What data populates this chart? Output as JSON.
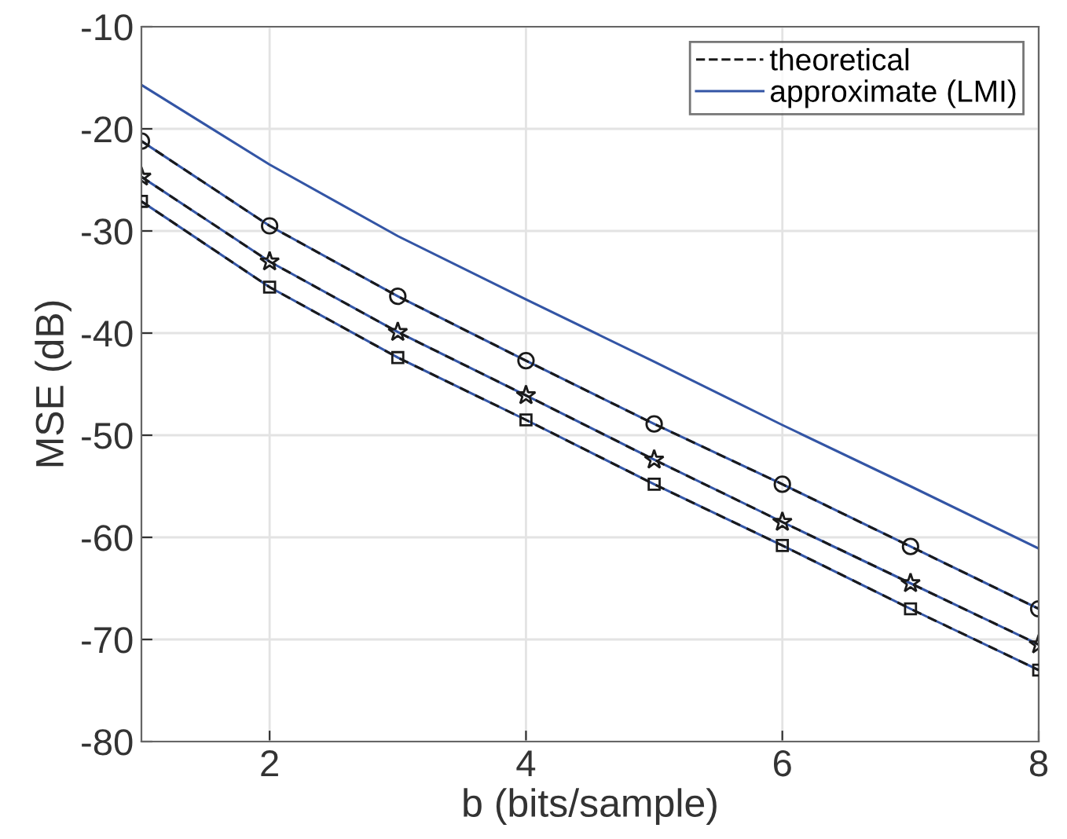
{
  "chart_data": {
    "type": "line",
    "xlabel": "b (bits/sample)",
    "ylabel": "MSE (dB)",
    "x": [
      1,
      2,
      3,
      4,
      5,
      6,
      7,
      8
    ],
    "xlim": [
      1,
      8
    ],
    "xticks": [
      2,
      4,
      6,
      8
    ],
    "ylim": [
      -80,
      -10
    ],
    "yticks": [
      -80,
      -70,
      -60,
      -50,
      -40,
      -30,
      -20,
      -10
    ],
    "grid": true,
    "legend": "top right",
    "series": [
      {
        "name": "approximate (LMI)",
        "color": "#3355a5",
        "line_style": "solid",
        "marker": "none",
        "values": [
          -15.7,
          -23.5,
          -30.5,
          -36.7,
          -42.8,
          -49.0,
          -55.0,
          -61.1
        ]
      },
      {
        "color": "#3355a5",
        "line_style": "solid",
        "marker": "none",
        "values": [
          -21.2,
          -29.5,
          -36.4,
          -42.7,
          -48.9,
          -54.8,
          -60.9,
          -67.0
        ]
      },
      {
        "color": "#3355a5",
        "line_style": "solid",
        "marker": "none",
        "values": [
          -24.7,
          -33.0,
          -39.9,
          -46.1,
          -52.4,
          -58.5,
          -64.5,
          -70.5
        ]
      },
      {
        "color": "#3355a5",
        "line_style": "solid",
        "marker": "none",
        "values": [
          -27.1,
          -35.5,
          -42.4,
          -48.5,
          -54.8,
          -60.8,
          -67.0,
          -73.0
        ]
      },
      {
        "name": "theoretical",
        "color": "#1a1a1a",
        "line_style": "dashed",
        "marker": "circle",
        "values": [
          -21.2,
          -29.5,
          -36.4,
          -42.7,
          -48.9,
          -54.8,
          -60.9,
          -67.0
        ]
      },
      {
        "color": "#1a1a1a",
        "line_style": "dashed",
        "marker": "star",
        "values": [
          -24.7,
          -33.0,
          -39.9,
          -46.1,
          -52.4,
          -58.5,
          -64.5,
          -70.5
        ]
      },
      {
        "color": "#1a1a1a",
        "line_style": "dashed",
        "marker": "square",
        "values": [
          -27.1,
          -35.5,
          -42.4,
          -48.5,
          -54.8,
          -60.8,
          -67.0,
          -73.0
        ]
      }
    ]
  }
}
